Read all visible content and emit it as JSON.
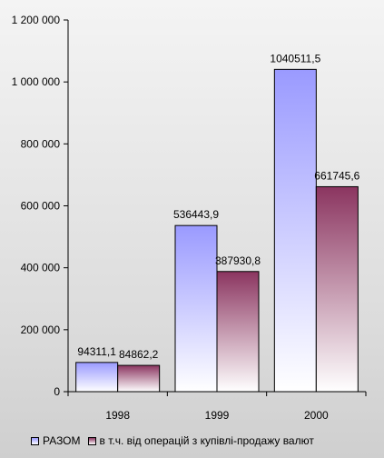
{
  "chart_data": {
    "type": "bar",
    "categories": [
      "1998",
      "1999",
      "2000"
    ],
    "series": [
      {
        "name": "РАЗОМ",
        "values": [
          94311.1,
          536443.9,
          1040511.5
        ],
        "labels": [
          "94311,1",
          "536443,9",
          "1040511,5"
        ],
        "color_top": "#9a9aff",
        "color_bottom": "#ffffff"
      },
      {
        "name": "в т.ч. від операцій з купівлі-продажу валют",
        "values": [
          84862.2,
          387930.8,
          661745.6
        ],
        "labels": [
          "84862,2",
          "387930,8",
          "661745,6"
        ],
        "color_top": "#8b3560",
        "color_bottom": "#ffffff"
      }
    ],
    "ylim": [
      0,
      1200000
    ],
    "yticks": [
      0,
      200000,
      400000,
      600000,
      800000,
      1000000,
      1200000
    ],
    "ytick_labels": [
      "0",
      "200 000",
      "400 000",
      "600 000",
      "800 000",
      "1 000 000",
      "1 200 000"
    ],
    "grid": false,
    "legend": "bottom"
  }
}
